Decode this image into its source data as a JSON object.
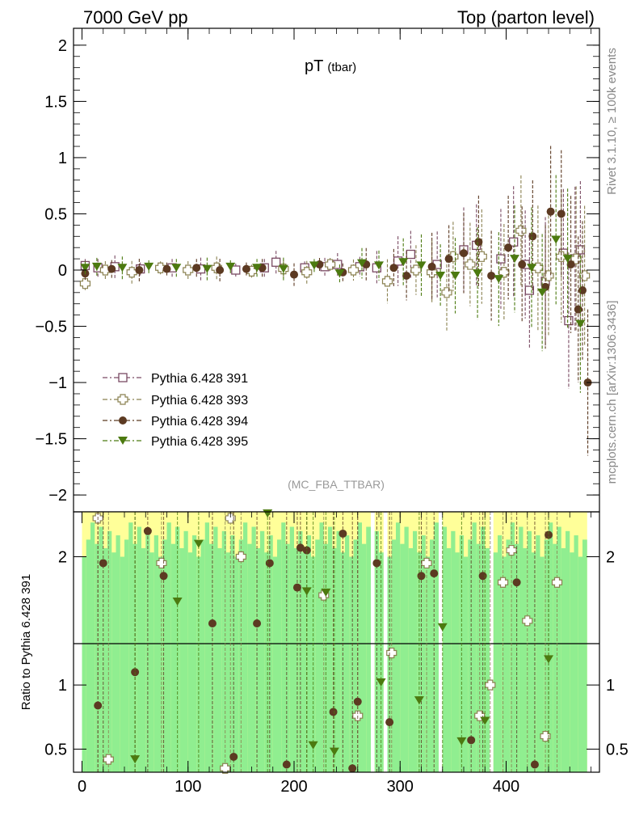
{
  "header": {
    "left": "7000 GeV pp",
    "right": "Top (parton level)"
  },
  "side_labels": {
    "rivet": "Rivet 3.1.10, ≥ 100k events",
    "mcplots": "mcplots.cern.ch [arXiv:1306.3436]"
  },
  "colors": {
    "s391": "#7a4a63",
    "s393": "#8a8150",
    "s394": "#5c3a22",
    "s395": "#4c7a10",
    "band_green": "#90ee90",
    "band_yellow": "#ffff99"
  },
  "chart_data": [
    {
      "type": "scatter",
      "title": "pT",
      "title_sub": "(tbar)",
      "analysis": "(MC_FBA_TTBAR)",
      "xlim": [
        -8,
        488
      ],
      "ylim": [
        -2.15,
        2.15
      ],
      "y_ticks": [
        2,
        1.5,
        1,
        0.5,
        0,
        -0.5,
        -1,
        -1.5,
        -2
      ],
      "y_tick_labels": [
        "2",
        "1.5",
        "1",
        "0.5",
        "0",
        "−0.5",
        "−1",
        "−1.5",
        "−2"
      ],
      "legend_position": "lower-left",
      "series": [
        {
          "name": "Pythia 6.428 391",
          "marker": "open-square",
          "points": [
            [
              3,
              0.04
            ],
            [
              15,
              0.02
            ],
            [
              31,
              0.03
            ],
            [
              55,
              0.01
            ],
            [
              85,
              0.02
            ],
            [
              112,
              0.01
            ],
            [
              145,
              0.0
            ],
            [
              172,
              0.02
            ],
            [
              183,
              0.07
            ],
            [
              210,
              0.02
            ],
            [
              229,
              0.03
            ],
            [
              241,
              0.05
            ],
            [
              262,
              0.03
            ],
            [
              278,
              0.02
            ],
            [
              298,
              0.08
            ],
            [
              310,
              0.14
            ],
            [
              335,
              0.05
            ],
            [
              360,
              0.18
            ],
            [
              372,
              0.22
            ],
            [
              395,
              0.1
            ],
            [
              407,
              0.25
            ],
            [
              418,
              0.05
            ],
            [
              422,
              -0.18
            ],
            [
              437,
              -0.1
            ],
            [
              454,
              0.15
            ],
            [
              459,
              -0.45
            ],
            [
              465,
              0.1
            ],
            [
              470,
              0.18
            ]
          ]
        },
        {
          "name": "Pythia 6.428 393",
          "marker": "open-cross",
          "points": [
            [
              3,
              -0.12
            ],
            [
              22,
              0.0
            ],
            [
              47,
              -0.02
            ],
            [
              74,
              0.02
            ],
            [
              100,
              0.0
            ],
            [
              127,
              0.02
            ],
            [
              160,
              -0.01
            ],
            [
              190,
              0.01
            ],
            [
              212,
              -0.02
            ],
            [
              234,
              0.05
            ],
            [
              256,
              0.0
            ],
            [
              288,
              -0.1
            ],
            [
              315,
              0.0
            ],
            [
              330,
              -0.02
            ],
            [
              344,
              -0.2
            ],
            [
              350,
              0.12
            ],
            [
              366,
              0.05
            ],
            [
              377,
              0.12
            ],
            [
              398,
              -0.02
            ],
            [
              414,
              0.35
            ],
            [
              430,
              0.02
            ],
            [
              440,
              -0.05
            ],
            [
              452,
              0.12
            ],
            [
              466,
              0.1
            ],
            [
              474,
              -0.05
            ]
          ]
        },
        {
          "name": "Pythia 6.428 394",
          "marker": "filled-circle",
          "points": [
            [
              3,
              -0.03
            ],
            [
              28,
              0.01
            ],
            [
              54,
              0.0
            ],
            [
              80,
              0.01
            ],
            [
              108,
              0.02
            ],
            [
              130,
              0.0
            ],
            [
              155,
              0.01
            ],
            [
              170,
              0.02
            ],
            [
              200,
              -0.04
            ],
            [
              224,
              0.05
            ],
            [
              246,
              -0.02
            ],
            [
              268,
              0.05
            ],
            [
              294,
              0.02
            ],
            [
              306,
              -0.05
            ],
            [
              330,
              0.03
            ],
            [
              346,
              0.1
            ],
            [
              360,
              0.15
            ],
            [
              374,
              0.25
            ],
            [
              386,
              -0.05
            ],
            [
              402,
              0.2
            ],
            [
              415,
              0.05
            ],
            [
              425,
              0.3
            ],
            [
              437,
              -0.15
            ],
            [
              442,
              0.52
            ],
            [
              452,
              0.5
            ],
            [
              461,
              0.05
            ],
            [
              468,
              -0.35
            ],
            [
              472,
              -0.18
            ],
            [
              477,
              -1.0
            ]
          ]
        },
        {
          "name": "Pythia 6.428 395",
          "marker": "filled-triangle",
          "points": [
            [
              3,
              0.02
            ],
            [
              14,
              0.03
            ],
            [
              38,
              0.02
            ],
            [
              63,
              0.03
            ],
            [
              89,
              0.02
            ],
            [
              118,
              0.01
            ],
            [
              140,
              0.03
            ],
            [
              165,
              0.02
            ],
            [
              190,
              0.01
            ],
            [
              219,
              0.04
            ],
            [
              243,
              -0.03
            ],
            [
              264,
              0.06
            ],
            [
              280,
              0.04
            ],
            [
              303,
              0.07
            ],
            [
              320,
              0.04
            ],
            [
              338,
              -0.05
            ],
            [
              352,
              -0.05
            ],
            [
              373,
              -0.03
            ],
            [
              393,
              -0.08
            ],
            [
              408,
              0.1
            ],
            [
              424,
              0.02
            ],
            [
              434,
              -0.2
            ],
            [
              447,
              0.27
            ],
            [
              458,
              0.1
            ],
            [
              470,
              -0.48
            ]
          ]
        }
      ]
    },
    {
      "type": "scatter",
      "ylabel": "Ratio to Pythia 6.428 391",
      "xlim": [
        -8,
        488
      ],
      "ylim": [
        0.32,
        2.35
      ],
      "y_ticks": [
        2,
        1,
        0.5
      ],
      "y_tick_labels": [
        "2",
        "1",
        "0.5"
      ],
      "x_ticks": [
        0,
        100,
        200,
        300,
        400
      ],
      "x_tick_labels": [
        "0",
        "100",
        "200",
        "300",
        "400"
      ],
      "reference_line": 1,
      "band_gaps": [
        [
          270,
          275
        ],
        [
          281,
          287
        ],
        [
          335,
          340
        ],
        [
          384,
          388
        ]
      ],
      "series": [
        {
          "name": "Pythia 6.428 393",
          "points": [
            [
              15,
              2.3
            ],
            [
              25,
              0.42
            ],
            [
              75,
              1.95
            ],
            [
              135,
              0.35
            ],
            [
              140,
              2.3
            ],
            [
              150,
              2.0
            ],
            [
              228,
              1.7
            ],
            [
              260,
              0.76
            ],
            [
              292,
              1.25
            ],
            [
              325,
              1.95
            ],
            [
              375,
              0.76
            ],
            [
              385,
              1.0
            ],
            [
              397,
              1.8
            ],
            [
              405,
              2.05
            ],
            [
              420,
              1.5
            ],
            [
              437,
              0.6
            ],
            [
              448,
              1.8
            ]
          ]
        },
        {
          "name": "Pythia 6.428 394",
          "points": [
            [
              15,
              0.84
            ],
            [
              20,
              1.95
            ],
            [
              50,
              1.1
            ],
            [
              62,
              2.2
            ],
            [
              77,
              1.85
            ],
            [
              123,
              1.48
            ],
            [
              143,
              0.44
            ],
            [
              165,
              1.48
            ],
            [
              177,
              1.95
            ],
            [
              193,
              0.38
            ],
            [
              203,
              1.76
            ],
            [
              206,
              2.07
            ],
            [
              212,
              2.05
            ],
            [
              237,
              0.79
            ],
            [
              246,
              2.18
            ],
            [
              255,
              0.35
            ],
            [
              260,
              0.87
            ],
            [
              278,
              1.95
            ],
            [
              290,
              0.71
            ],
            [
              320,
              1.85
            ],
            [
              332,
              1.87
            ],
            [
              367,
              0.57
            ],
            [
              378,
              1.85
            ],
            [
              410,
              1.8
            ],
            [
              427,
              0.38
            ],
            [
              440,
              2.17
            ]
          ]
        },
        {
          "name": "Pythia 6.428 395",
          "points": [
            [
              50,
              0.42
            ],
            [
              90,
              1.65
            ],
            [
              110,
              2.1
            ],
            [
              175,
              2.4
            ],
            [
              212,
              1.73
            ],
            [
              218,
              0.53
            ],
            [
              230,
              1.72
            ],
            [
              238,
              0.48
            ],
            [
              282,
              1.02
            ],
            [
              318,
              0.88
            ],
            [
              340,
              1.45
            ],
            [
              358,
              0.56
            ],
            [
              380,
              0.72
            ],
            [
              440,
              1.2
            ]
          ]
        }
      ]
    }
  ]
}
